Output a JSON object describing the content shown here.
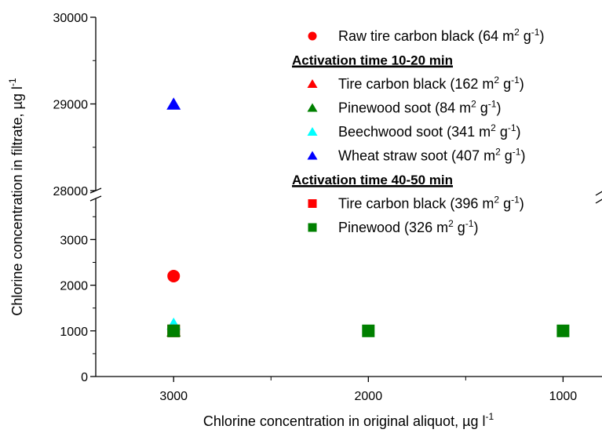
{
  "chart_data": {
    "type": "scatter",
    "xlabel": "Chlorine concentration in original aliquot, µg l",
    "xlabel_sup": "-1",
    "ylabel": "Chlorine concentration in filtrate, µg l",
    "ylabel_sup": "-1",
    "x_reversed": true,
    "x_ticks": [
      3000,
      2000,
      1000
    ],
    "x_minor_ticks": [
      2500,
      1500
    ],
    "xlim": [
      3400,
      800
    ],
    "y_broken": true,
    "y_lower": {
      "ylim": [
        0,
        3900
      ],
      "ticks": [
        0,
        1000,
        2000,
        3000
      ]
    },
    "y_upper": {
      "ylim": [
        28000,
        30000
      ],
      "ticks": [
        28000,
        29000,
        30000
      ]
    },
    "legend_position": "top-right",
    "series": [
      {
        "name": "Raw tire carbon black (64 m",
        "name_sup1": "2",
        "name_mid": " g",
        "name_sup2": "-1",
        "name_end": ")",
        "color": "#ff0000",
        "marker": "circle",
        "x": [
          3000
        ],
        "y": [
          2200
        ]
      },
      {
        "group_heading": "Activation time 10-20 min"
      },
      {
        "name": "Tire carbon black (162 m",
        "name_sup1": "2",
        "name_mid": " g",
        "name_sup2": "-1",
        "name_end": ")",
        "color": "#ff0000",
        "marker": "triangle",
        "x": [
          3000
        ],
        "y": [
          1000
        ]
      },
      {
        "name": "Pinewood soot (84 m",
        "name_sup1": "2",
        "name_mid": " g",
        "name_sup2": "-1",
        "name_end": ")",
        "color": "#008000",
        "marker": "triangle",
        "x": [
          3000
        ],
        "y": [
          1000
        ]
      },
      {
        "name": "Beechwood soot (341 m",
        "name_sup1": "2",
        "name_mid": " g",
        "name_sup2": "-1",
        "name_end": ")",
        "color": "#00ffff",
        "marker": "triangle",
        "x": [
          3000
        ],
        "y": [
          1150
        ]
      },
      {
        "name": "Wheat straw soot (407 m",
        "name_sup1": "2",
        "name_mid": " g",
        "name_sup2": "-1",
        "name_end": ")",
        "color": "#0000ff",
        "marker": "triangle",
        "x": [
          3000
        ],
        "y": [
          29000
        ]
      },
      {
        "group_heading": "Activation time 40-50 min"
      },
      {
        "name": "Tire carbon black (396 m",
        "name_sup1": "2",
        "name_mid": " g",
        "name_sup2": "-1",
        "name_end": ")",
        "color": "#ff0000",
        "marker": "square",
        "x": [
          3000
        ],
        "y": [
          1000
        ]
      },
      {
        "name": "Pinewood (326 m",
        "name_sup1": "2",
        "name_mid": " g",
        "name_sup2": "-1",
        "name_end": ")",
        "color": "#008000",
        "marker": "square",
        "x": [
          3000,
          2000,
          1000
        ],
        "y": [
          1000,
          1000,
          1000
        ]
      }
    ]
  }
}
